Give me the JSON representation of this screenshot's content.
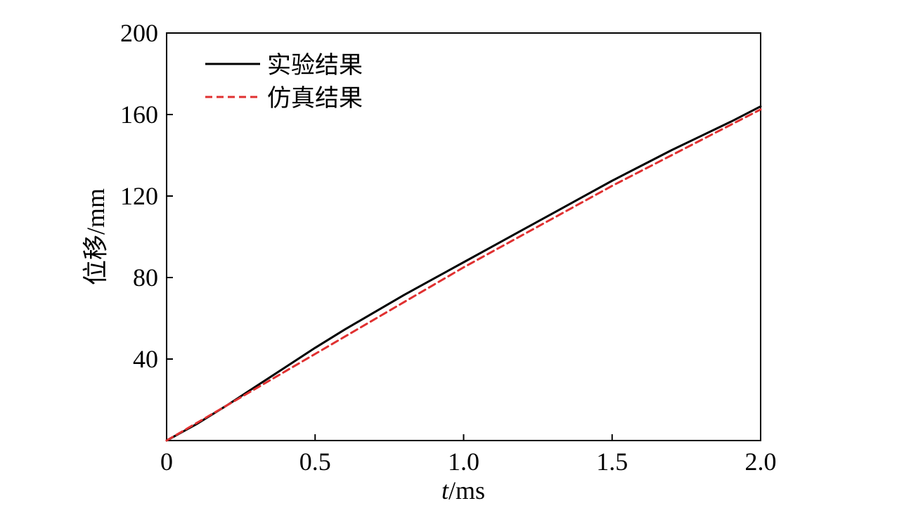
{
  "chart_data": {
    "type": "line",
    "title": "",
    "xlabel_italic": "t",
    "xlabel_unit": "/ms",
    "ylabel": "位移/mm",
    "xlim": [
      0,
      2.0
    ],
    "ylim": [
      0,
      200
    ],
    "xticks": [
      0,
      0.5,
      1.0,
      1.5,
      2.0
    ],
    "xtick_labels": [
      "0",
      "0.5",
      "1.0",
      "1.5",
      "2.0"
    ],
    "yticks": [
      40,
      80,
      120,
      160,
      200
    ],
    "ytick_labels": [
      "40",
      "80",
      "120",
      "160",
      "200"
    ],
    "grid": false,
    "legend_position": "top-left",
    "series": [
      {
        "name": "实验结果",
        "color": "#000000",
        "style": "solid",
        "x": [
          0,
          0.1,
          0.2,
          0.3,
          0.4,
          0.5,
          0.6,
          0.7,
          0.8,
          0.9,
          1.0,
          1.1,
          1.2,
          1.3,
          1.4,
          1.5,
          1.6,
          1.7,
          1.8,
          1.9,
          2.0
        ],
        "y": [
          0,
          8,
          17,
          26.5,
          36,
          45.5,
          54.5,
          63,
          71.5,
          79.5,
          87.5,
          95.5,
          103.5,
          111.5,
          119.5,
          127.5,
          135,
          142.5,
          149.5,
          156.5,
          164
        ]
      },
      {
        "name": "仿真结果",
        "color": "#e03030",
        "style": "dashed",
        "x": [
          0,
          0.1,
          0.2,
          0.3,
          0.4,
          0.5,
          0.6,
          0.7,
          0.8,
          0.9,
          1.0,
          1.1,
          1.2,
          1.3,
          1.4,
          1.5,
          1.6,
          1.7,
          1.8,
          1.9,
          2.0
        ],
        "y": [
          0,
          8.5,
          17,
          25.5,
          34,
          42.5,
          51,
          59.5,
          68,
          76.5,
          85,
          93,
          101,
          109,
          117,
          125,
          132.5,
          140,
          147.5,
          155,
          162.5
        ]
      }
    ]
  }
}
